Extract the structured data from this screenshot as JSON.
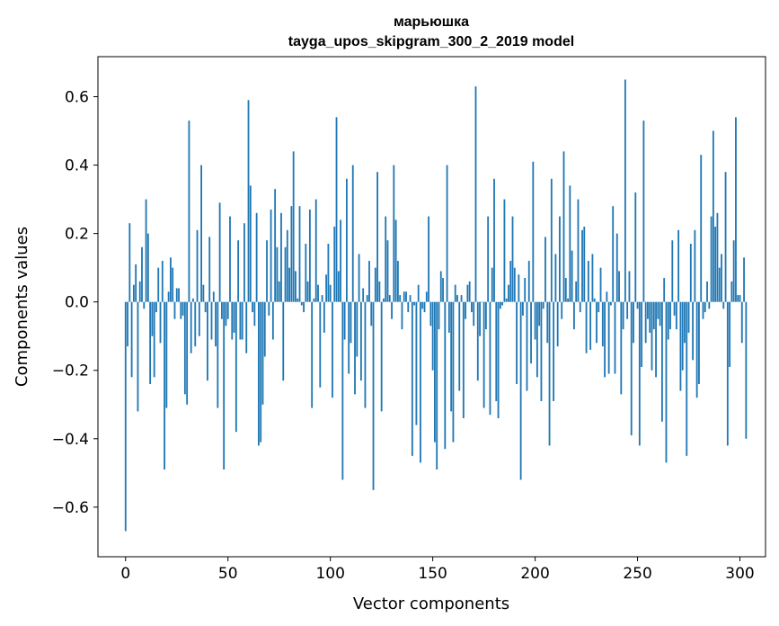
{
  "chart_data": {
    "type": "bar",
    "title": "марьюшка",
    "subtitle": "tayga_upos_skipgram_300_2_2019 model",
    "xlabel": "Vector components",
    "ylabel": "Components values",
    "xlim": [
      -13.5,
      312.5
    ],
    "ylim": [
      -0.745,
      0.717
    ],
    "xticks": [
      0,
      50,
      100,
      150,
      200,
      250,
      300
    ],
    "yticks": [
      -0.6,
      -0.4,
      -0.2,
      0.0,
      0.2,
      0.4,
      0.6
    ],
    "ytick_labels": [
      "−0.6",
      "−0.4",
      "−0.2",
      "0.0",
      "0.2",
      "0.4",
      "0.6"
    ],
    "bar_color": "#1f77b4",
    "values": [
      -0.67,
      -0.13,
      0.23,
      -0.22,
      0.05,
      0.11,
      -0.32,
      0.06,
      0.16,
      -0.02,
      0.3,
      0.2,
      -0.24,
      -0.1,
      -0.22,
      -0.03,
      0.1,
      -0.12,
      0.12,
      -0.49,
      -0.31,
      0.03,
      0.13,
      0.1,
      -0.05,
      0.04,
      0.04,
      -0.05,
      -0.04,
      -0.27,
      -0.3,
      0.53,
      -0.15,
      0.01,
      -0.13,
      0.21,
      -0.1,
      0.4,
      0.05,
      -0.03,
      -0.23,
      0.19,
      -0.11,
      0.03,
      -0.13,
      -0.31,
      0.29,
      -0.05,
      -0.49,
      -0.07,
      -0.05,
      0.25,
      -0.11,
      -0.09,
      -0.38,
      0.18,
      -0.11,
      -0.11,
      0.23,
      -0.15,
      0.59,
      0.34,
      -0.03,
      -0.07,
      0.26,
      -0.42,
      -0.41,
      -0.3,
      -0.16,
      0.18,
      -0.04,
      0.27,
      -0.11,
      0.33,
      0.16,
      0.06,
      0.26,
      -0.23,
      0.16,
      0.21,
      0.1,
      0.28,
      0.44,
      0.09,
      0.01,
      0.28,
      -0.01,
      -0.03,
      0.17,
      0.06,
      0.27,
      -0.31,
      0.01,
      0.3,
      0.05,
      -0.25,
      0.02,
      -0.09,
      0.08,
      0.17,
      0.05,
      -0.28,
      0.22,
      0.54,
      0.09,
      0.24,
      -0.52,
      -0.11,
      0.36,
      -0.21,
      -0.12,
      0.4,
      -0.27,
      -0.16,
      0.14,
      -0.23,
      0.04,
      -0.31,
      0.02,
      0.12,
      -0.07,
      -0.55,
      0.1,
      0.38,
      0.06,
      -0.32,
      0.01,
      0.25,
      0.18,
      0.02,
      -0.05,
      0.4,
      0.24,
      0.12,
      0.02,
      -0.08,
      0.03,
      0.03,
      -0.03,
      0.02,
      -0.45,
      -0.01,
      -0.36,
      0.05,
      -0.47,
      -0.02,
      -0.03,
      0.03,
      0.25,
      -0.07,
      -0.2,
      -0.41,
      -0.49,
      -0.08,
      0.09,
      0.07,
      -0.43,
      0.4,
      -0.09,
      -0.32,
      -0.41,
      0.05,
      0.02,
      -0.26,
      0.02,
      -0.34,
      -0.05,
      0.05,
      0.06,
      -0.03,
      -0.07,
      0.63,
      -0.23,
      -0.1,
      0.0,
      -0.31,
      -0.08,
      0.25,
      -0.33,
      0.1,
      0.36,
      -0.29,
      -0.34,
      -0.02,
      -0.01,
      0.3,
      0.01,
      0.05,
      0.12,
      0.25,
      0.1,
      -0.24,
      0.08,
      -0.52,
      -0.04,
      0.07,
      -0.26,
      0.12,
      -0.18,
      0.41,
      -0.11,
      -0.22,
      -0.07,
      -0.29,
      -0.02,
      0.19,
      -0.12,
      -0.42,
      0.36,
      -0.29,
      0.14,
      -0.13,
      0.25,
      -0.05,
      0.44,
      0.07,
      0.01,
      0.34,
      0.15,
      -0.08,
      0.06,
      0.3,
      -0.03,
      0.21,
      0.22,
      -0.15,
      0.12,
      -0.14,
      0.14,
      0.01,
      -0.12,
      -0.03,
      0.1,
      -0.13,
      -0.22,
      0.03,
      -0.21,
      -0.01,
      0.28,
      -0.21,
      0.2,
      0.09,
      -0.27,
      -0.08,
      0.65,
      -0.05,
      0.09,
      -0.39,
      -0.12,
      0.32,
      -0.02,
      -0.42,
      -0.19,
      0.53,
      -0.12,
      -0.05,
      -0.09,
      -0.2,
      -0.08,
      -0.22,
      -0.05,
      -0.07,
      -0.35,
      0.07,
      -0.47,
      -0.11,
      -0.08,
      0.18,
      -0.04,
      -0.08,
      0.21,
      -0.26,
      -0.2,
      -0.12,
      -0.45,
      -0.09,
      0.17,
      -0.17,
      0.21,
      -0.28,
      -0.24,
      0.43,
      -0.05,
      -0.03,
      0.06,
      -0.02,
      0.25,
      0.5,
      0.22,
      0.26,
      0.1,
      0.14,
      -0.02,
      0.38,
      -0.42,
      -0.19,
      0.06,
      0.18,
      0.54,
      0.02,
      0.02,
      -0.12,
      0.13,
      -0.4
    ]
  }
}
